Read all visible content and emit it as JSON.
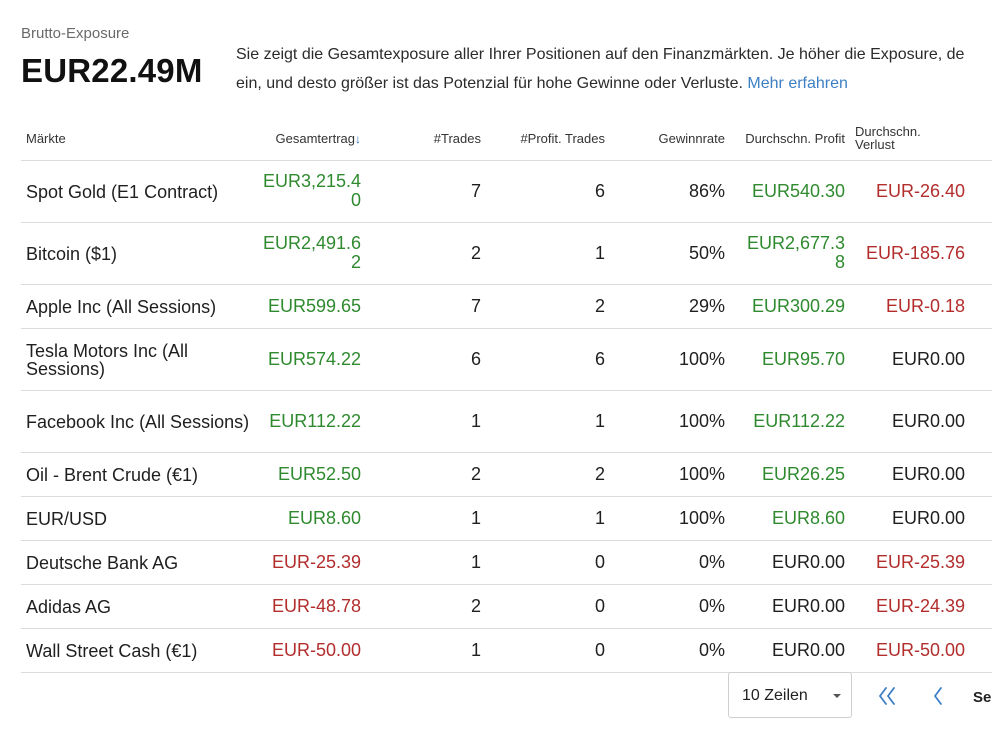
{
  "exposure": {
    "label": "Brutto-Exposure",
    "value": "EUR22.49M",
    "desc_line1": "Sie zeigt die Gesamtexposure aller Ihrer Positionen auf den Finanzmärkten. Je höher die Exposure, de",
    "desc_line2": "ein, und desto größer ist das Potenzial für hohe Gewinne oder Verluste.",
    "link": "Mehr erfahren"
  },
  "table": {
    "headers": {
      "market": "Märkte",
      "total": "Gesamtertrag",
      "sort_arrow": "↓",
      "trades": "#Trades",
      "profit_trades": "#Profit. Trades",
      "winrate": "Gewinnrate",
      "avg_profit": "Durchschn. Profit",
      "avg_loss_1": "Durchschn.",
      "avg_loss_2": "Verlust"
    },
    "rows": [
      {
        "market": "Spot Gold (E1 Contract)",
        "total": "EUR3,215.40",
        "trades": "7",
        "profit_trades": "6",
        "winrate": "86%",
        "avg_profit": "EUR540.30",
        "avg_loss": "EUR-26.40"
      },
      {
        "market": "Bitcoin ($1)",
        "total": "EUR2,491.62",
        "trades": "2",
        "profit_trades": "1",
        "winrate": "50%",
        "avg_profit": "EUR2,677.38",
        "avg_loss": "EUR-185.76"
      },
      {
        "market": "Apple Inc (All Sessions)",
        "total": "EUR599.65",
        "trades": "7",
        "profit_trades": "2",
        "winrate": "29%",
        "avg_profit": "EUR300.29",
        "avg_loss": "EUR-0.18"
      },
      {
        "market": "Tesla Motors Inc (All Sessions)",
        "total": "EUR574.22",
        "trades": "6",
        "profit_trades": "6",
        "winrate": "100%",
        "avg_profit": "EUR95.70",
        "avg_loss": "EUR0.00"
      },
      {
        "market": "Facebook Inc (All Sessions)",
        "total": "EUR112.22",
        "trades": "1",
        "profit_trades": "1",
        "winrate": "100%",
        "avg_profit": "EUR112.22",
        "avg_loss": "EUR0.00"
      },
      {
        "market": "Oil - Brent Crude (€1)",
        "total": "EUR52.50",
        "trades": "2",
        "profit_trades": "2",
        "winrate": "100%",
        "avg_profit": "EUR26.25",
        "avg_loss": "EUR0.00"
      },
      {
        "market": "EUR/USD",
        "total": "EUR8.60",
        "trades": "1",
        "profit_trades": "1",
        "winrate": "100%",
        "avg_profit": "EUR8.60",
        "avg_loss": "EUR0.00"
      },
      {
        "market": "Deutsche Bank AG",
        "total": "EUR-25.39",
        "trades": "1",
        "profit_trades": "0",
        "winrate": "0%",
        "avg_profit": "EUR0.00",
        "avg_loss": "EUR-25.39"
      },
      {
        "market": "Adidas AG",
        "total": "EUR-48.78",
        "trades": "2",
        "profit_trades": "0",
        "winrate": "0%",
        "avg_profit": "EUR0.00",
        "avg_loss": "EUR-24.39"
      },
      {
        "market": "Wall Street Cash (€1)",
        "total": "EUR-50.00",
        "trades": "1",
        "profit_trades": "0",
        "winrate": "0%",
        "avg_profit": "EUR0.00",
        "avg_loss": "EUR-50.00"
      }
    ]
  },
  "pager": {
    "rows_select": "10 Zeilen",
    "next_label": "Se"
  },
  "colors": {
    "positive": "#2f8a2f",
    "negative": "#b32d2d",
    "link": "#3d7fc4",
    "pager_icon": "#3d7fc4"
  },
  "icons": {
    "first_page": "double-chevron-left-icon",
    "prev_page": "chevron-left-icon",
    "dropdown": "caret-down-icon",
    "sort": "sort-desc-arrow-icon"
  }
}
